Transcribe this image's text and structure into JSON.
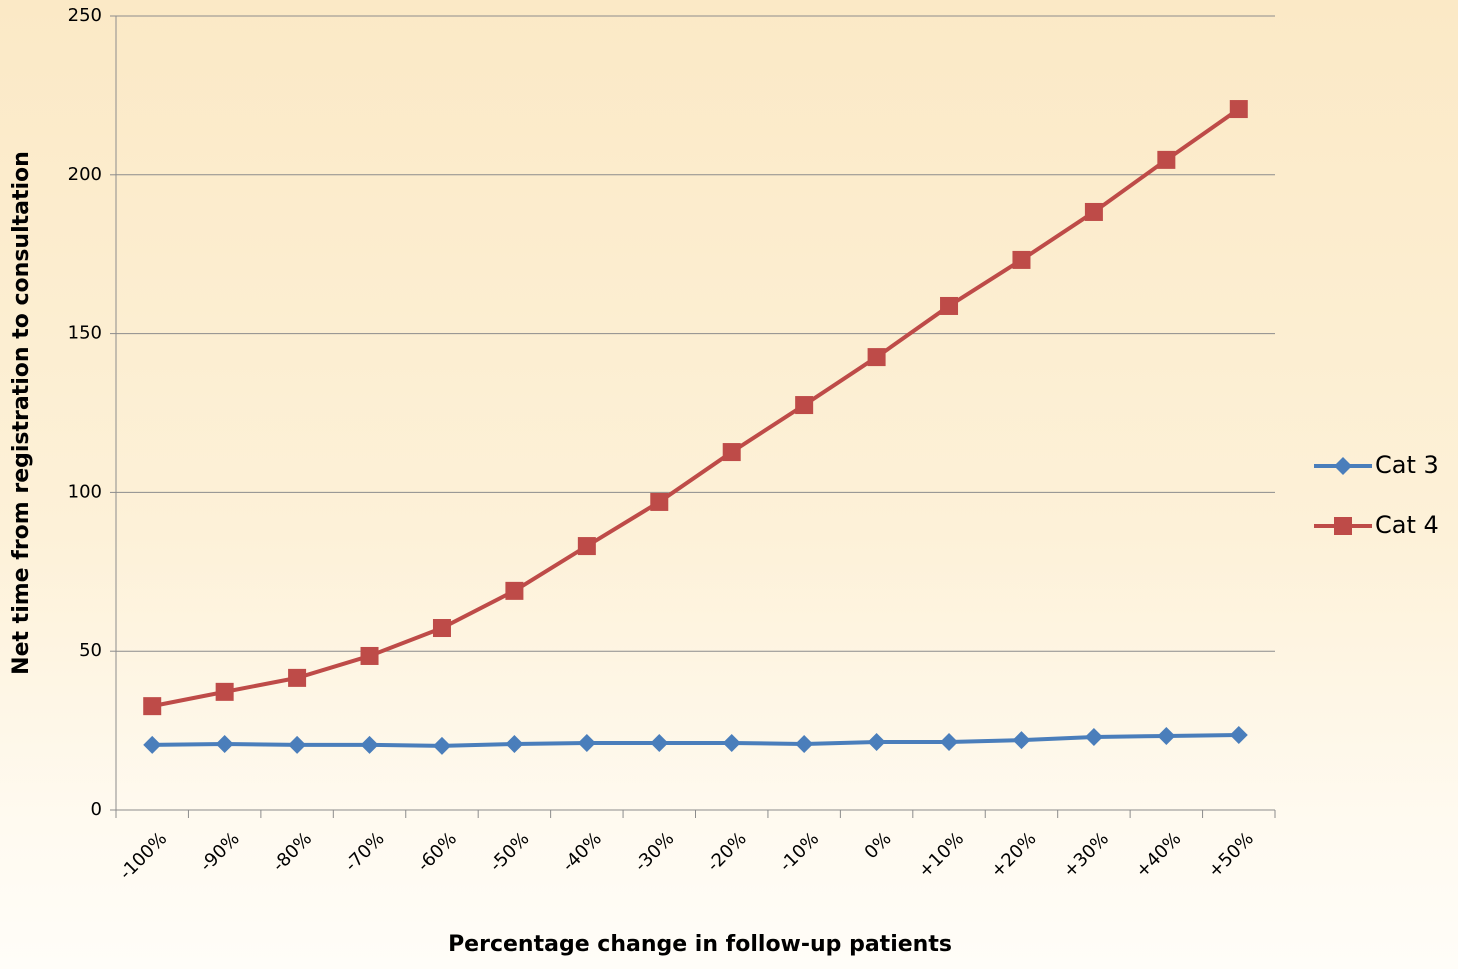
{
  "chart_data": {
    "type": "line",
    "x_label": "Percentage change in follow-up patients",
    "y_label": "Net time from registration to consultation",
    "categories": [
      "-100%",
      "-90%",
      "-80%",
      "-70%",
      "-60%",
      "-50%",
      "-40%",
      "-30%",
      "-20%",
      "-10%",
      "0%",
      "+10%",
      "+20%",
      "+30%",
      "+40%",
      "+50%"
    ],
    "series": [
      {
        "name": "Cat 3",
        "color": "#4a7ebb",
        "marker": "diamond",
        "values": [
          20.5,
          20.8,
          20.5,
          20.5,
          20.2,
          20.8,
          21.1,
          21.1,
          21.1,
          20.8,
          21.4,
          21.4,
          22,
          23,
          23.3,
          23.6
        ]
      },
      {
        "name": "Cat 4",
        "color": "#be4b48",
        "marker": "square",
        "values": [
          32.7,
          37.2,
          41.6,
          48.5,
          57.3,
          69,
          83.1,
          97,
          112.7,
          127.5,
          142.6,
          158.7,
          173.2,
          188.3,
          204.7,
          220.7
        ]
      }
    ],
    "ylim": [
      0,
      250
    ],
    "yticks": [
      0,
      50,
      100,
      150,
      200,
      250
    ],
    "grid": true,
    "legend": "right"
  }
}
